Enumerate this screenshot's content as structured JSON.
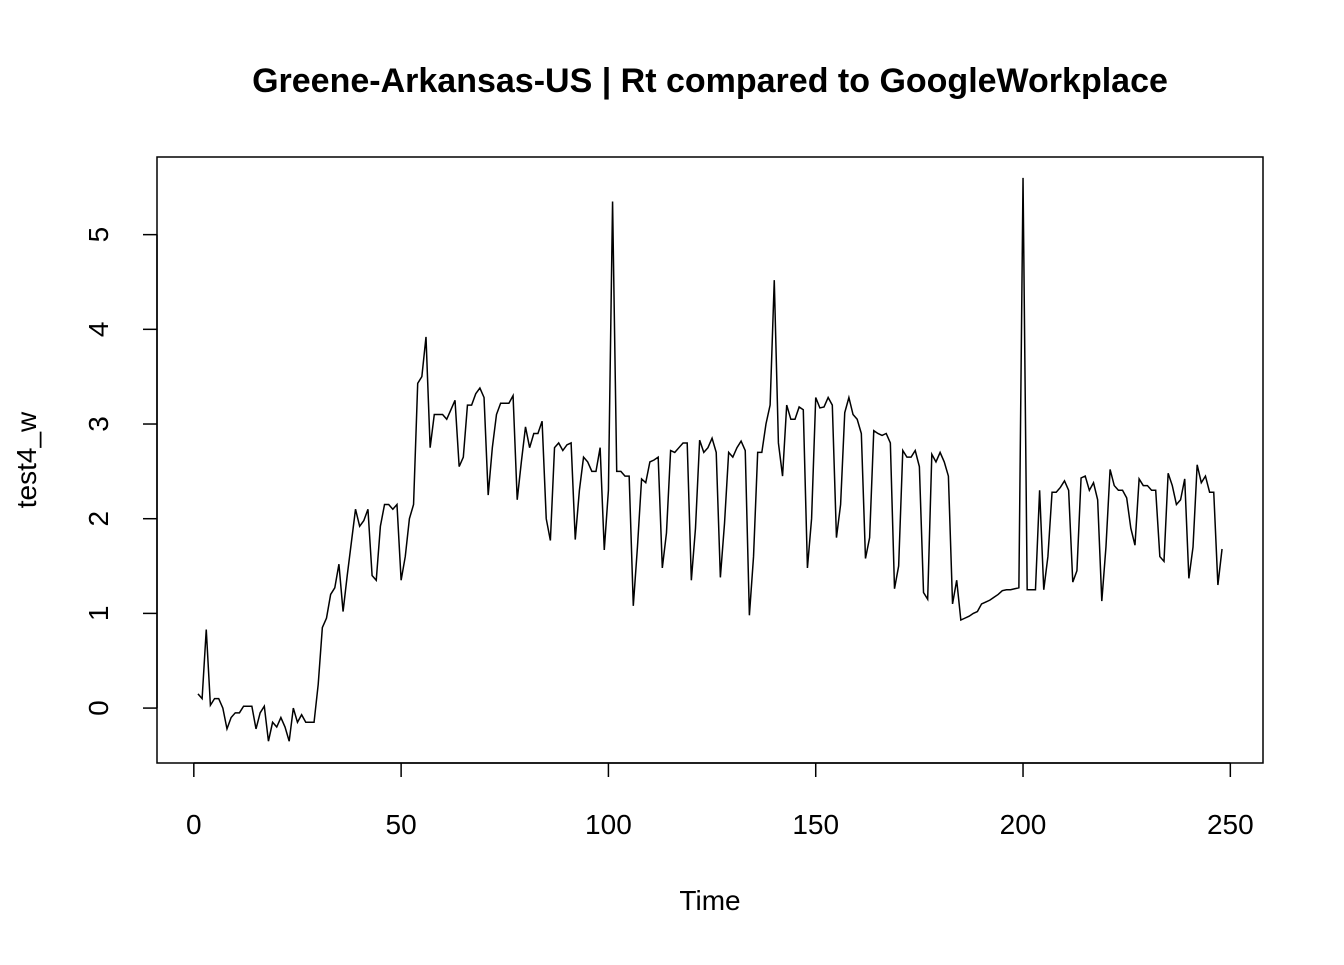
{
  "chart_data": {
    "type": "line",
    "title": "Greene-Arkansas-US | Rt compared to GoogleWorkplace",
    "x_label": "Time",
    "y_label": "test4_w",
    "x": [
      1,
      2,
      3,
      4,
      5,
      6,
      7,
      8,
      9,
      10,
      11,
      12,
      13,
      14,
      15,
      16,
      17,
      18,
      19,
      20,
      21,
      22,
      23,
      24,
      25,
      26,
      27,
      28,
      29,
      30,
      31,
      32,
      33,
      34,
      35,
      36,
      37,
      38,
      39,
      40,
      41,
      42,
      43,
      44,
      45,
      46,
      47,
      48,
      49,
      50,
      51,
      52,
      53,
      54,
      55,
      56,
      57,
      58,
      59,
      60,
      61,
      62,
      63,
      64,
      65,
      66,
      67,
      68,
      69,
      70,
      71,
      72,
      73,
      74,
      75,
      76,
      77,
      78,
      79,
      80,
      81,
      82,
      83,
      84,
      85,
      86,
      87,
      88,
      89,
      90,
      91,
      92,
      93,
      94,
      95,
      96,
      97,
      98,
      99,
      100,
      101,
      102,
      103,
      104,
      105,
      106,
      107,
      108,
      109,
      110,
      111,
      112,
      113,
      114,
      115,
      116,
      117,
      118,
      119,
      120,
      121,
      122,
      123,
      124,
      125,
      126,
      127,
      128,
      129,
      130,
      131,
      132,
      133,
      134,
      135,
      136,
      137,
      138,
      139,
      140,
      141,
      142,
      143,
      144,
      145,
      146,
      147,
      148,
      149,
      150,
      151,
      152,
      153,
      154,
      155,
      156,
      157,
      158,
      159,
      160,
      161,
      162,
      163,
      164,
      165,
      166,
      167,
      168,
      169,
      170,
      171,
      172,
      173,
      174,
      175,
      176,
      177,
      178,
      179,
      180,
      181,
      182,
      183,
      184,
      185,
      186,
      187,
      188,
      189,
      190,
      191,
      192,
      193,
      194,
      195,
      196,
      197,
      198,
      199,
      200,
      201,
      202,
      203,
      204,
      205,
      206,
      207,
      208,
      209,
      210,
      211,
      212,
      213,
      214,
      215,
      216,
      217,
      218,
      219,
      220,
      221,
      222,
      223,
      224,
      225,
      226,
      227,
      228,
      229,
      230,
      231,
      232,
      233,
      234,
      235,
      236,
      237,
      238,
      239,
      240,
      241,
      242,
      243,
      244,
      245,
      246,
      247,
      248
    ],
    "series": [
      {
        "name": "test4_w",
        "color": "#000000",
        "values": [
          0.15,
          0.1,
          0.83,
          0.03,
          0.1,
          0.1,
          0.0,
          -0.22,
          -0.1,
          -0.05,
          -0.05,
          0.02,
          0.02,
          0.02,
          -0.22,
          -0.05,
          0.02,
          -0.35,
          -0.15,
          -0.2,
          -0.1,
          -0.2,
          -0.35,
          0.0,
          -0.15,
          -0.07,
          -0.15,
          -0.15,
          -0.15,
          0.25,
          0.85,
          0.95,
          1.2,
          1.27,
          1.52,
          1.02,
          1.4,
          1.75,
          2.1,
          1.92,
          1.98,
          2.1,
          1.4,
          1.35,
          1.92,
          2.15,
          2.15,
          2.1,
          2.15,
          1.35,
          1.6,
          2.0,
          2.15,
          3.43,
          3.5,
          3.92,
          2.75,
          3.1,
          3.1,
          3.1,
          3.05,
          3.15,
          3.25,
          2.55,
          2.65,
          3.2,
          3.2,
          3.32,
          3.38,
          3.28,
          2.25,
          2.75,
          3.1,
          3.22,
          3.22,
          3.22,
          3.3,
          2.2,
          2.6,
          2.97,
          2.75,
          2.9,
          2.9,
          3.03,
          2.0,
          1.77,
          2.75,
          2.8,
          2.72,
          2.78,
          2.8,
          1.78,
          2.3,
          2.65,
          2.6,
          2.5,
          2.5,
          2.75,
          1.67,
          2.3,
          5.35,
          2.5,
          2.5,
          2.45,
          2.45,
          1.08,
          1.7,
          2.42,
          2.38,
          2.6,
          2.62,
          2.65,
          1.48,
          1.85,
          2.72,
          2.7,
          2.75,
          2.8,
          2.8,
          1.35,
          1.9,
          2.83,
          2.7,
          2.75,
          2.85,
          2.7,
          1.38,
          1.95,
          2.7,
          2.65,
          2.75,
          2.82,
          2.72,
          0.98,
          1.6,
          2.7,
          2.7,
          3.0,
          3.2,
          4.52,
          2.8,
          2.45,
          3.2,
          3.05,
          3.05,
          3.18,
          3.15,
          1.48,
          2.0,
          3.28,
          3.17,
          3.18,
          3.28,
          3.2,
          1.8,
          2.15,
          3.12,
          3.28,
          3.1,
          3.05,
          2.9,
          1.58,
          1.8,
          2.93,
          2.9,
          2.88,
          2.9,
          2.8,
          1.26,
          1.5,
          2.72,
          2.65,
          2.65,
          2.72,
          2.55,
          1.22,
          1.15,
          2.68,
          2.6,
          2.7,
          2.6,
          2.45,
          1.1,
          1.35,
          0.93,
          0.95,
          0.97,
          1.0,
          1.02,
          1.1,
          1.12,
          1.14,
          1.17,
          1.2,
          1.24,
          1.25,
          1.25,
          1.26,
          1.27,
          5.6,
          1.25,
          1.25,
          1.25,
          2.3,
          1.25,
          1.6,
          2.28,
          2.28,
          2.33,
          2.4,
          2.3,
          1.33,
          1.45,
          2.43,
          2.45,
          2.3,
          2.38,
          2.2,
          1.13,
          1.7,
          2.52,
          2.35,
          2.3,
          2.3,
          2.22,
          1.9,
          1.72,
          2.42,
          2.35,
          2.35,
          2.3,
          2.3,
          1.6,
          1.55,
          2.48,
          2.35,
          2.15,
          2.2,
          2.42,
          1.37,
          1.7,
          2.57,
          2.38,
          2.45,
          2.28,
          2.28,
          1.3,
          1.68
        ]
      }
    ],
    "xlim": [
      -8.88,
      257.88
    ],
    "ylim": [
      -0.58,
      5.82
    ],
    "xticks": [
      0,
      50,
      100,
      150,
      200,
      250
    ],
    "yticks": [
      0,
      1,
      2,
      3,
      4,
      5
    ]
  }
}
